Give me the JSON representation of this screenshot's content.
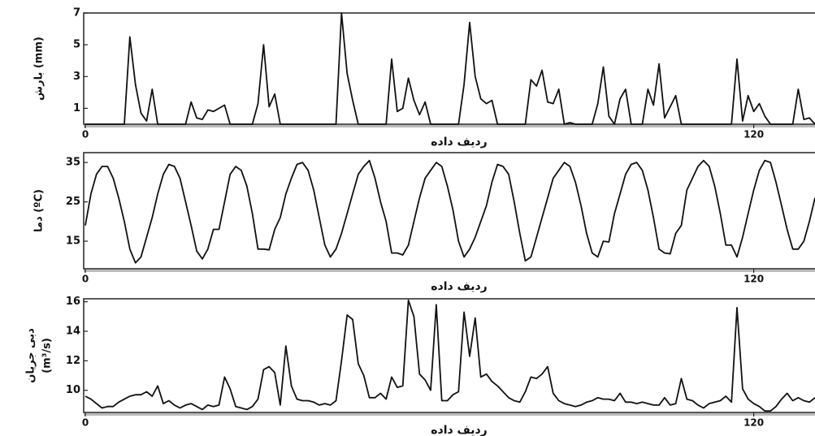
{
  "chart_data": [
    {
      "type": "line",
      "ylabel": [
        "بارش (mm)"
      ],
      "xlabel": "ردیف داده",
      "color": "#111111",
      "xlim": [
        0,
        131
      ],
      "ylim": [
        0,
        7
      ],
      "xticks": [
        0,
        120
      ],
      "yticks": [
        1,
        3,
        5,
        7
      ],
      "x": [
        0,
        1,
        2,
        3,
        4,
        5,
        6,
        7,
        8,
        9,
        10,
        11,
        12,
        13,
        14,
        15,
        16,
        17,
        18,
        19,
        20,
        21,
        22,
        23,
        24,
        25,
        26,
        27,
        28,
        29,
        30,
        31,
        32,
        33,
        34,
        35,
        36,
        37,
        38,
        39,
        40,
        41,
        42,
        43,
        44,
        45,
        46,
        47,
        48,
        49,
        50,
        51,
        52,
        53,
        54,
        55,
        56,
        57,
        58,
        59,
        60,
        61,
        62,
        63,
        64,
        65,
        66,
        67,
        68,
        69,
        70,
        71,
        72,
        73,
        74,
        75,
        76,
        77,
        78,
        79,
        80,
        81,
        82,
        83,
        84,
        85,
        86,
        87,
        88,
        89,
        90,
        91,
        92,
        93,
        94,
        95,
        96,
        97,
        98,
        99,
        100,
        101,
        102,
        103,
        104,
        105,
        106,
        107,
        108,
        109,
        110,
        111,
        112,
        113,
        114,
        115,
        116,
        117,
        118,
        119,
        120,
        121,
        122,
        123,
        124,
        125,
        126,
        127,
        128,
        129,
        130,
        131
      ],
      "values": [
        0,
        0,
        0,
        0,
        0,
        0,
        0,
        0,
        5.5,
        2.5,
        0.7,
        0.2,
        2.2,
        0,
        0,
        0,
        0,
        0,
        0,
        1.4,
        0.4,
        0.3,
        0.9,
        0.8,
        1.0,
        1.2,
        0,
        0,
        0,
        0,
        0,
        1.3,
        5.0,
        1.1,
        1.9,
        0,
        0,
        0,
        0,
        0,
        0,
        0,
        0,
        0,
        0,
        0,
        7.0,
        3.2,
        1.5,
        0,
        0,
        0,
        0,
        0,
        0,
        4.1,
        0.8,
        1.0,
        2.9,
        1.5,
        0.6,
        1.4,
        0,
        0,
        0,
        0,
        0,
        0,
        2.5,
        6.4,
        3.0,
        1.6,
        1.3,
        1.5,
        0,
        0,
        0,
        0,
        0,
        0,
        2.8,
        2.4,
        3.4,
        1.4,
        1.3,
        2.2,
        0,
        0.1,
        0,
        0,
        0,
        0,
        1.3,
        3.6,
        0.5,
        0,
        1.6,
        2.2,
        0,
        0,
        0,
        2.2,
        1.2,
        3.8,
        0.4,
        1.1,
        1.8,
        0,
        0,
        0,
        0,
        0,
        0,
        0,
        0,
        0,
        0,
        4.1,
        0.2,
        1.8,
        0.8,
        1.3,
        0.5,
        0,
        0,
        0,
        0,
        0,
        2.2,
        0.3,
        0.4,
        0
      ]
    },
    {
      "type": "line",
      "ylabel": [
        "دما (ºC)"
      ],
      "xlabel": "ردیف داده",
      "color": "#111111",
      "xlim": [
        0,
        131
      ],
      "ylim": [
        8,
        37.5
      ],
      "xticks": [
        0,
        120
      ],
      "yticks": [
        15,
        25,
        35
      ],
      "x": [
        0,
        1,
        2,
        3,
        4,
        5,
        6,
        7,
        8,
        9,
        10,
        11,
        12,
        13,
        14,
        15,
        16,
        17,
        18,
        19,
        20,
        21,
        22,
        23,
        24,
        25,
        26,
        27,
        28,
        29,
        30,
        31,
        32,
        33,
        34,
        35,
        36,
        37,
        38,
        39,
        40,
        41,
        42,
        43,
        44,
        45,
        46,
        47,
        48,
        49,
        50,
        51,
        52,
        53,
        54,
        55,
        56,
        57,
        58,
        59,
        60,
        61,
        62,
        63,
        64,
        65,
        66,
        67,
        68,
        69,
        70,
        71,
        72,
        73,
        74,
        75,
        76,
        77,
        78,
        79,
        80,
        81,
        82,
        83,
        84,
        85,
        86,
        87,
        88,
        89,
        90,
        91,
        92,
        93,
        94,
        95,
        96,
        97,
        98,
        99,
        100,
        101,
        102,
        103,
        104,
        105,
        106,
        107,
        108,
        109,
        110,
        111,
        112,
        113,
        114,
        115,
        116,
        117,
        118,
        119,
        120,
        121,
        122,
        123,
        124,
        125,
        126,
        127,
        128,
        129,
        130,
        131
      ],
      "values": [
        19,
        27,
        32,
        34,
        34,
        31,
        26,
        20,
        13,
        9.5,
        11,
        16,
        21,
        27,
        32,
        34.5,
        34,
        31,
        25,
        19,
        12.5,
        10.5,
        13,
        18,
        18,
        25,
        32,
        34,
        33,
        29,
        22,
        13,
        13,
        12.8,
        18,
        21,
        27,
        31,
        34.5,
        35,
        33,
        28,
        21,
        14,
        11,
        13,
        17,
        22,
        27,
        32,
        34,
        35.5,
        31,
        25,
        20,
        12,
        12,
        11.5,
        14,
        20,
        26,
        31,
        33,
        35,
        34,
        29,
        23,
        15,
        11,
        13,
        16,
        20,
        24,
        30,
        34.5,
        34,
        32,
        25,
        17,
        10,
        11,
        16,
        21,
        26,
        31,
        33,
        35,
        34,
        30,
        24,
        17,
        12,
        11,
        15,
        14.8,
        22,
        27,
        32,
        34.5,
        35,
        33,
        28,
        21,
        13,
        12,
        11.8,
        17,
        19,
        28,
        31,
        34,
        35.5,
        34,
        29,
        22,
        14,
        14,
        11,
        16,
        22,
        28,
        33,
        35.5,
        35,
        30,
        24,
        18,
        13,
        13,
        15,
        20,
        26
      ]
    },
    {
      "type": "line",
      "ylabel": [
        "دبی جریان",
        "(m³/s)"
      ],
      "xlabel": "ردیف داده",
      "color": "#111111",
      "xlim": [
        0,
        131
      ],
      "ylim": [
        8.5,
        16.2
      ],
      "xticks": [
        0,
        120
      ],
      "yticks": [
        10,
        12,
        14,
        16
      ],
      "x": [
        0,
        1,
        2,
        3,
        4,
        5,
        6,
        7,
        8,
        9,
        10,
        11,
        12,
        13,
        14,
        15,
        16,
        17,
        18,
        19,
        20,
        21,
        22,
        23,
        24,
        25,
        26,
        27,
        28,
        29,
        30,
        31,
        32,
        33,
        34,
        35,
        36,
        37,
        38,
        39,
        40,
        41,
        42,
        43,
        44,
        45,
        46,
        47,
        48,
        49,
        50,
        51,
        52,
        53,
        54,
        55,
        56,
        57,
        58,
        59,
        60,
        61,
        62,
        63,
        64,
        65,
        66,
        67,
        68,
        69,
        70,
        71,
        72,
        73,
        74,
        75,
        76,
        77,
        78,
        79,
        80,
        81,
        82,
        83,
        84,
        85,
        86,
        87,
        88,
        89,
        90,
        91,
        92,
        93,
        94,
        95,
        96,
        97,
        98,
        99,
        100,
        101,
        102,
        103,
        104,
        105,
        106,
        107,
        108,
        109,
        110,
        111,
        112,
        113,
        114,
        115,
        116,
        117,
        118,
        119,
        120,
        121,
        122,
        123,
        124,
        125,
        126,
        127,
        128,
        129,
        130,
        131
      ],
      "values": [
        9.6,
        9.4,
        9.1,
        8.8,
        8.9,
        8.9,
        9.2,
        9.4,
        9.6,
        9.7,
        9.7,
        9.9,
        9.6,
        10.3,
        9.1,
        9.3,
        9.0,
        8.8,
        9.0,
        9.1,
        8.9,
        8.7,
        9.0,
        8.9,
        9.0,
        10.9,
        10.1,
        8.9,
        8.8,
        8.7,
        8.9,
        9.4,
        11.4,
        11.6,
        11.2,
        9.0,
        13.0,
        10.3,
        9.4,
        9.3,
        9.3,
        9.2,
        9.0,
        9.1,
        9.0,
        9.3,
        12.0,
        15.1,
        14.8,
        11.8,
        11.0,
        9.5,
        9.5,
        9.8,
        9.4,
        10.9,
        10.2,
        10.3,
        16.1,
        15.0,
        11.1,
        10.7,
        10.0,
        15.8,
        9.3,
        9.3,
        9.7,
        9.9,
        15.3,
        12.3,
        14.9,
        10.9,
        11.1,
        10.6,
        10.3,
        9.9,
        9.5,
        9.3,
        9.2,
        9.9,
        10.9,
        10.8,
        11.1,
        11.6,
        9.8,
        9.3,
        9.1,
        9.0,
        8.9,
        9.0,
        9.2,
        9.3,
        9.5,
        9.4,
        9.4,
        9.3,
        9.8,
        9.2,
        9.2,
        9.1,
        9.2,
        9.1,
        9.0,
        9.0,
        9.5,
        9.0,
        9.1,
        10.8,
        9.4,
        9.3,
        9.0,
        8.8,
        9.1,
        9.2,
        9.3,
        9.6,
        9.2,
        15.6,
        10.1,
        9.4,
        9.1,
        8.9,
        8.6,
        8.6,
        8.9,
        9.4,
        9.8,
        9.3,
        9.5,
        9.3,
        9.2,
        9.5
      ]
    }
  ]
}
